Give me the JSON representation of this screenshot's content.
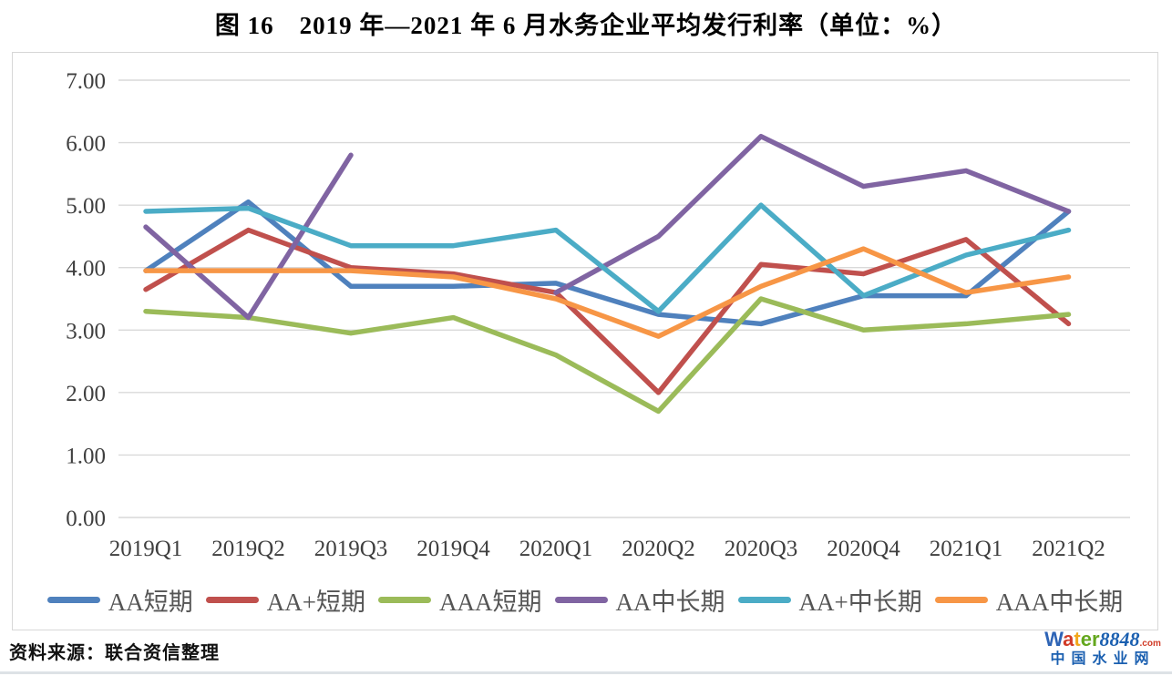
{
  "page": {
    "title": "图 16　2019 年—2021 年 6 月水务企业平均发行利率（单位：%）",
    "source_note": "资料来源：联合资信整理"
  },
  "chart_data": {
    "type": "line",
    "title": "图 16　2019 年—2021 年 6 月水务企业平均发行利率（单位：%）",
    "unit": "%",
    "categories": [
      "2019Q1",
      "2019Q2",
      "2019Q3",
      "2019Q4",
      "2020Q1",
      "2020Q2",
      "2020Q3",
      "2020Q4",
      "2021Q1",
      "2021Q2"
    ],
    "series": [
      {
        "name": "AA短期",
        "color": "#4F81BD",
        "values": [
          3.95,
          5.05,
          3.7,
          3.7,
          3.75,
          3.25,
          3.1,
          3.55,
          3.55,
          4.9
        ]
      },
      {
        "name": "AA+短期",
        "color": "#C0504D",
        "values": [
          3.65,
          4.6,
          4.0,
          3.9,
          3.6,
          2.0,
          4.05,
          3.9,
          4.45,
          3.1
        ]
      },
      {
        "name": "AAA短期",
        "color": "#9BBB59",
        "values": [
          3.3,
          3.2,
          2.95,
          3.2,
          2.6,
          1.7,
          3.5,
          3.0,
          3.1,
          3.25
        ]
      },
      {
        "name": "AA中长期",
        "color": "#8064A2",
        "values": [
          4.65,
          3.2,
          5.8,
          null,
          3.6,
          4.5,
          6.1,
          5.3,
          5.55,
          4.9
        ]
      },
      {
        "name": "AA+中长期",
        "color": "#4BACC6",
        "values": [
          4.9,
          4.95,
          4.35,
          4.35,
          4.6,
          3.3,
          5.0,
          3.55,
          4.2,
          4.6
        ]
      },
      {
        "name": "AAA中长期",
        "color": "#F79646",
        "values": [
          3.95,
          3.95,
          3.95,
          3.85,
          3.5,
          2.9,
          3.7,
          4.3,
          3.6,
          3.85
        ]
      }
    ],
    "ylim": [
      0,
      7
    ],
    "ytick_step": 1,
    "ytick_decimals": 2,
    "grid": "horizontal",
    "gridline_color": "#d9d9d9",
    "axis_text_color": "#3f3f3f",
    "legend_position": "bottom"
  },
  "logo": {
    "brand_letters": [
      {
        "ch": "W",
        "color": "#2e64b5"
      },
      {
        "ch": "a",
        "color": "#d13b27"
      },
      {
        "ch": "t",
        "color": "#f2a71b"
      },
      {
        "ch": "e",
        "color": "#64a71e"
      },
      {
        "ch": "r",
        "color": "#64a71e"
      }
    ],
    "brand_number": "8848",
    "brand_tld": ".com",
    "brand_cn": "中国水业网",
    "brand_blue": "#1a5fb0",
    "tld_color": "#d13b27"
  }
}
